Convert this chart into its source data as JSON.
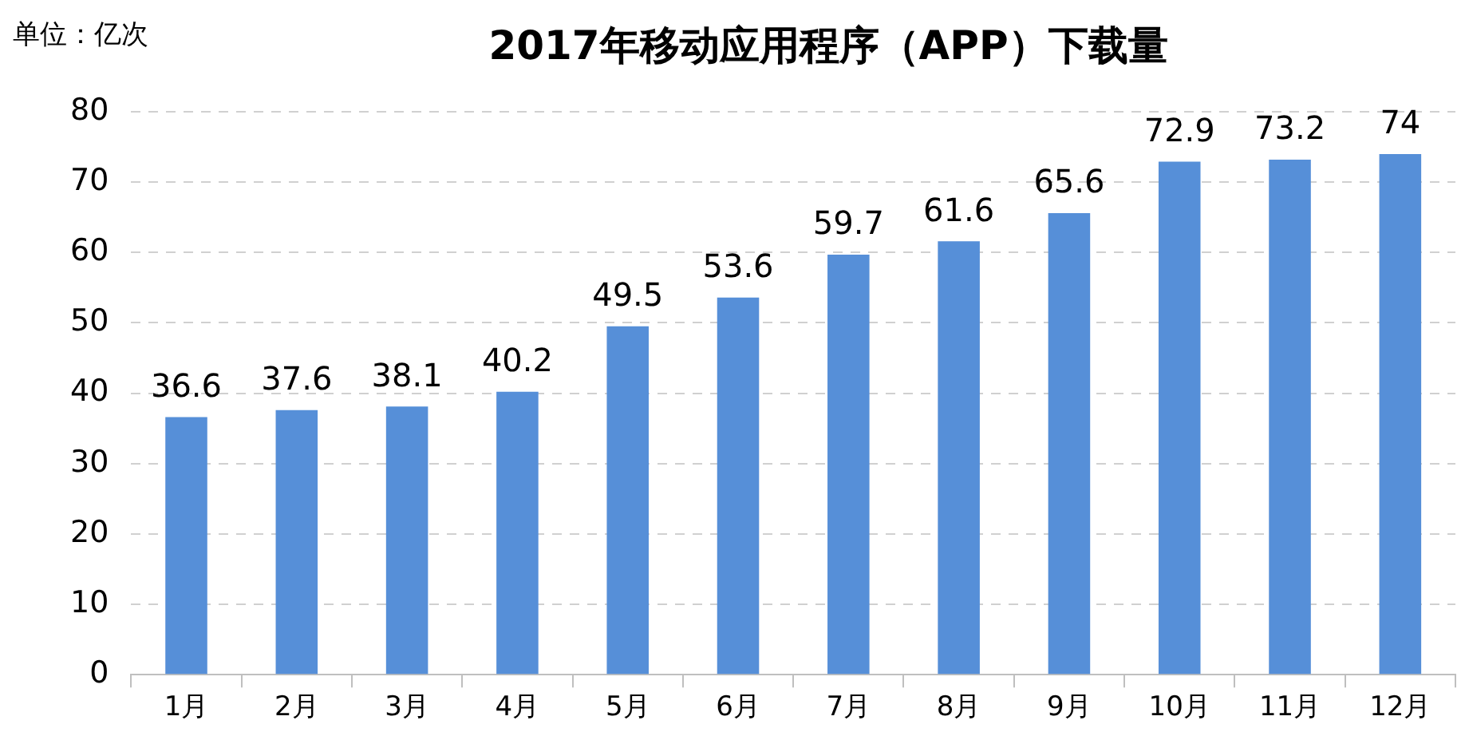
{
  "chart_data": {
    "type": "bar",
    "title": "2017年移动应用程序（APP）下载量",
    "annotations": [
      "单位：亿次"
    ],
    "categories": [
      "1月",
      "2月",
      "3月",
      "4月",
      "5月",
      "6月",
      "7月",
      "8月",
      "9月",
      "10月",
      "11月",
      "12月"
    ],
    "values": [
      36.6,
      37.6,
      38.1,
      40.2,
      49.5,
      53.6,
      59.7,
      61.6,
      65.6,
      72.9,
      73.2,
      74
    ],
    "color": "#568fd8",
    "ylim": [
      0,
      80
    ],
    "yticks": [
      0,
      10,
      20,
      30,
      40,
      50,
      60,
      70,
      80
    ],
    "grid": "y",
    "data_labels": true
  }
}
